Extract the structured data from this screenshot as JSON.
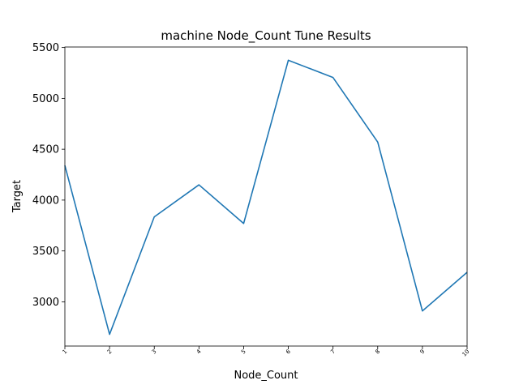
{
  "chart_data": {
    "type": "line",
    "title": "machine Node_Count Tune Results",
    "xlabel": "Node_Count",
    "ylabel": "Target",
    "x": [
      1,
      2,
      3,
      4,
      5,
      6,
      7,
      8,
      9,
      10
    ],
    "series": [
      {
        "values": [
          4340,
          2680,
          3835,
          4150,
          3770,
          5375,
          5205,
          4570,
          2910,
          3290
        ],
        "color": "#1f77b4"
      }
    ],
    "x_ticks": [
      "1",
      "2",
      "3",
      "4",
      "5",
      "6",
      "7",
      "8",
      "9",
      "10"
    ],
    "y_ticks": [
      "3000",
      "3500",
      "4000",
      "4500",
      "5000",
      "5500"
    ],
    "xlim": [
      1,
      10
    ],
    "ylim": [
      2565,
      5505
    ],
    "grid": false,
    "legend": "none"
  }
}
